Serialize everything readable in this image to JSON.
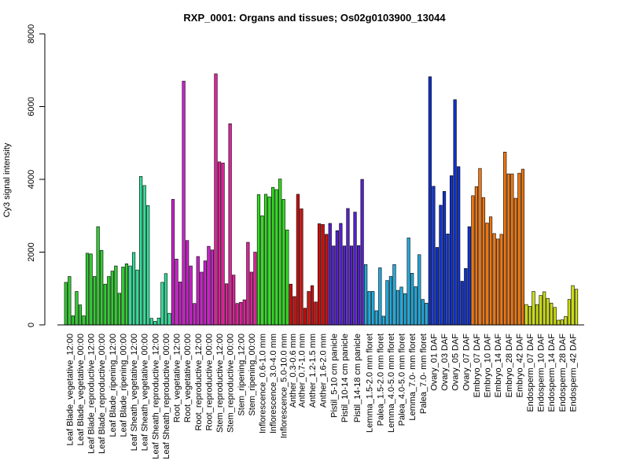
{
  "chart_data": {
    "type": "bar",
    "title": "RXP_0001: Organs and tissues; Os02g0103900_13044",
    "xlabel": "",
    "ylabel": "Cy3 signal intensity",
    "ylim": [
      0,
      8000
    ],
    "yticks": [
      0,
      2000,
      4000,
      6000,
      8000
    ],
    "categories": [
      "Leaf Blade_vegetative_12:00",
      "Leaf Blade_vegetative_00:00",
      "Leaf Blade_reproductive_12:00",
      "Leaf Blade_reproductive_00:00",
      "Leaf Blade_ripening_12:00",
      "Leaf Blade_ripening_00:00",
      "Leaf Sheath_vegetative_12:00",
      "Leaf Sheath_vegetative_00:00",
      "Leaf Sheath_reproductive_12:00",
      "Leaf Sheath_reproductive_00:00",
      "Root_vegetative_12:00",
      "Root_vegetative_00:00",
      "Root_reproductive_12:00",
      "Root_reproductive_00:00",
      "Stem_reproductive_12:00",
      "Stem_reproductive_00:00",
      "Stem_ripening_12:00",
      "Stem_ripening_00:00",
      "Inflorescence_0.6-1.0 mm",
      "Inflorescence_3.0-4.0 mm",
      "Inflorescence_5.0-10.0 mm",
      "Anther_0.3-0.6 mm",
      "Anther_0.7-1.0 mm",
      "Anther_1.2-1.5 mm",
      "Anther_1.6-2.0 mm",
      "Pistil_5-10 cm panicle",
      "Pistil_10-14 cm panicle",
      "Pistil_14-18 cm panicle",
      "Lemma_1.5-2.0 mm floret",
      "Palea_1.5-2.0 mm floret",
      "Lemma_4.0-5.0 mm floret",
      "Palea_4.0-5.0 mm floret",
      "Lemma_7.0- mm floret",
      "Palea_7.0- mm floret",
      "Ovary_01 DAF",
      "Ovary_03 DAF",
      "Ovary_05 DAF",
      "Ovary_07 DAF",
      "Embryo_07 DAF",
      "Embryo_10 DAF",
      "Embryo_14 DAF",
      "Embryo_28 DAF",
      "Embryo_42 DAF",
      "Endosperm_07 DAF",
      "Endosperm_10 DAF",
      "Endosperm_14 DAF",
      "Endosperm_28 DAF",
      "Endosperm_42 DAF"
    ],
    "groups": [
      {
        "color": "#33cc33",
        "values": [
          1170,
          1330,
          250
        ]
      },
      {
        "color": "#33cc33",
        "values": [
          920,
          550,
          250
        ]
      },
      {
        "color": "#33cc33",
        "values": [
          1970,
          1950,
          1330
        ]
      },
      {
        "color": "#33cc33",
        "values": [
          2700,
          2050,
          1120
        ]
      },
      {
        "color": "#33cc33",
        "values": [
          1330,
          1480,
          1620
        ]
      },
      {
        "color": "#33cc33",
        "values": [
          870,
          1590,
          1680
        ]
      },
      {
        "color": "#33dd99",
        "values": [
          1620,
          1990,
          1510
        ]
      },
      {
        "color": "#33dd99",
        "values": [
          4080,
          3830,
          3280
        ]
      },
      {
        "color": "#33dd99",
        "values": [
          180,
          100,
          190
        ]
      },
      {
        "color": "#33dd99",
        "values": [
          1170,
          1410,
          320
        ]
      },
      {
        "color": "#cc22cc",
        "values": [
          3450,
          1810,
          1180
        ]
      },
      {
        "color": "#cc22cc",
        "values": [
          6700,
          2320,
          1620
        ]
      },
      {
        "color": "#cc22cc",
        "values": [
          590,
          1880,
          1450
        ]
      },
      {
        "color": "#cc22cc",
        "values": [
          1760,
          2160,
          2060
        ]
      },
      {
        "color": "#dd2299",
        "values": [
          6900,
          4480,
          4450
        ]
      },
      {
        "color": "#dd2299",
        "values": [
          1130,
          5530,
          1370
        ]
      },
      {
        "color": "#dd2299",
        "values": [
          590,
          620,
          690
        ]
      },
      {
        "color": "#dd2299",
        "values": [
          2270,
          1450,
          2000
        ]
      },
      {
        "color": "#33dd22",
        "values": [
          3580,
          3000,
          3590
        ]
      },
      {
        "color": "#33dd22",
        "values": [
          3520,
          3780,
          3720
        ]
      },
      {
        "color": "#33dd22",
        "values": [
          4010,
          3450,
          2610
        ]
      },
      {
        "color": "#cc1111",
        "values": [
          1120,
          780
        ]
      },
      {
        "color": "#cc1111",
        "values": [
          3590,
          3190,
          460
        ]
      },
      {
        "color": "#cc1111",
        "values": [
          920,
          1080,
          630
        ]
      },
      {
        "color": "#cc1111",
        "values": [
          2780,
          2760,
          2490
        ]
      },
      {
        "color": "#5522cc",
        "values": [
          2790,
          2170,
          2590
        ]
      },
      {
        "color": "#5522cc",
        "values": [
          2790,
          2170,
          3200
        ]
      },
      {
        "color": "#5522cc",
        "values": [
          2170,
          3100,
          2180,
          4000
        ]
      },
      {
        "color": "#22aadd",
        "values": [
          1660,
          920,
          920
        ]
      },
      {
        "color": "#22aadd",
        "values": [
          390,
          1570,
          240
        ]
      },
      {
        "color": "#22aadd",
        "values": [
          1220,
          1330,
          1660
        ]
      },
      {
        "color": "#22aadd",
        "values": [
          950,
          1040,
          860
        ]
      },
      {
        "color": "#22aadd",
        "values": [
          2390,
          1420,
          1050
        ]
      },
      {
        "color": "#22aadd",
        "values": [
          1930,
          700,
          600
        ]
      },
      {
        "color": "#1133cc",
        "values": [
          6820,
          3810,
          2130
        ]
      },
      {
        "color": "#1133cc",
        "values": [
          3290,
          3670,
          2500
        ]
      },
      {
        "color": "#1133cc",
        "values": [
          4100,
          6190,
          4350
        ]
      },
      {
        "color": "#1133cc",
        "values": [
          1200,
          1550,
          2700
        ]
      },
      {
        "color": "#ee7711",
        "values": [
          3550,
          3800,
          4300
        ]
      },
      {
        "color": "#ee7711",
        "values": [
          3500,
          2800,
          2970
        ]
      },
      {
        "color": "#ee7711",
        "values": [
          2510,
          2360,
          2490
        ]
      },
      {
        "color": "#ee7711",
        "values": [
          4750,
          4150,
          4150
        ]
      },
      {
        "color": "#ee7711",
        "values": [
          3480,
          4170,
          4280
        ]
      },
      {
        "color": "#ccdd11",
        "values": [
          560,
          510,
          920
        ]
      },
      {
        "color": "#ccdd11",
        "values": [
          560,
          810,
          910
        ]
      },
      {
        "color": "#ccdd11",
        "values": [
          730,
          600,
          480
        ]
      },
      {
        "color": "#ccdd11",
        "values": [
          130,
          140,
          230
        ]
      },
      {
        "color": "#ccdd11",
        "values": [
          700,
          1080,
          980
        ]
      }
    ]
  }
}
